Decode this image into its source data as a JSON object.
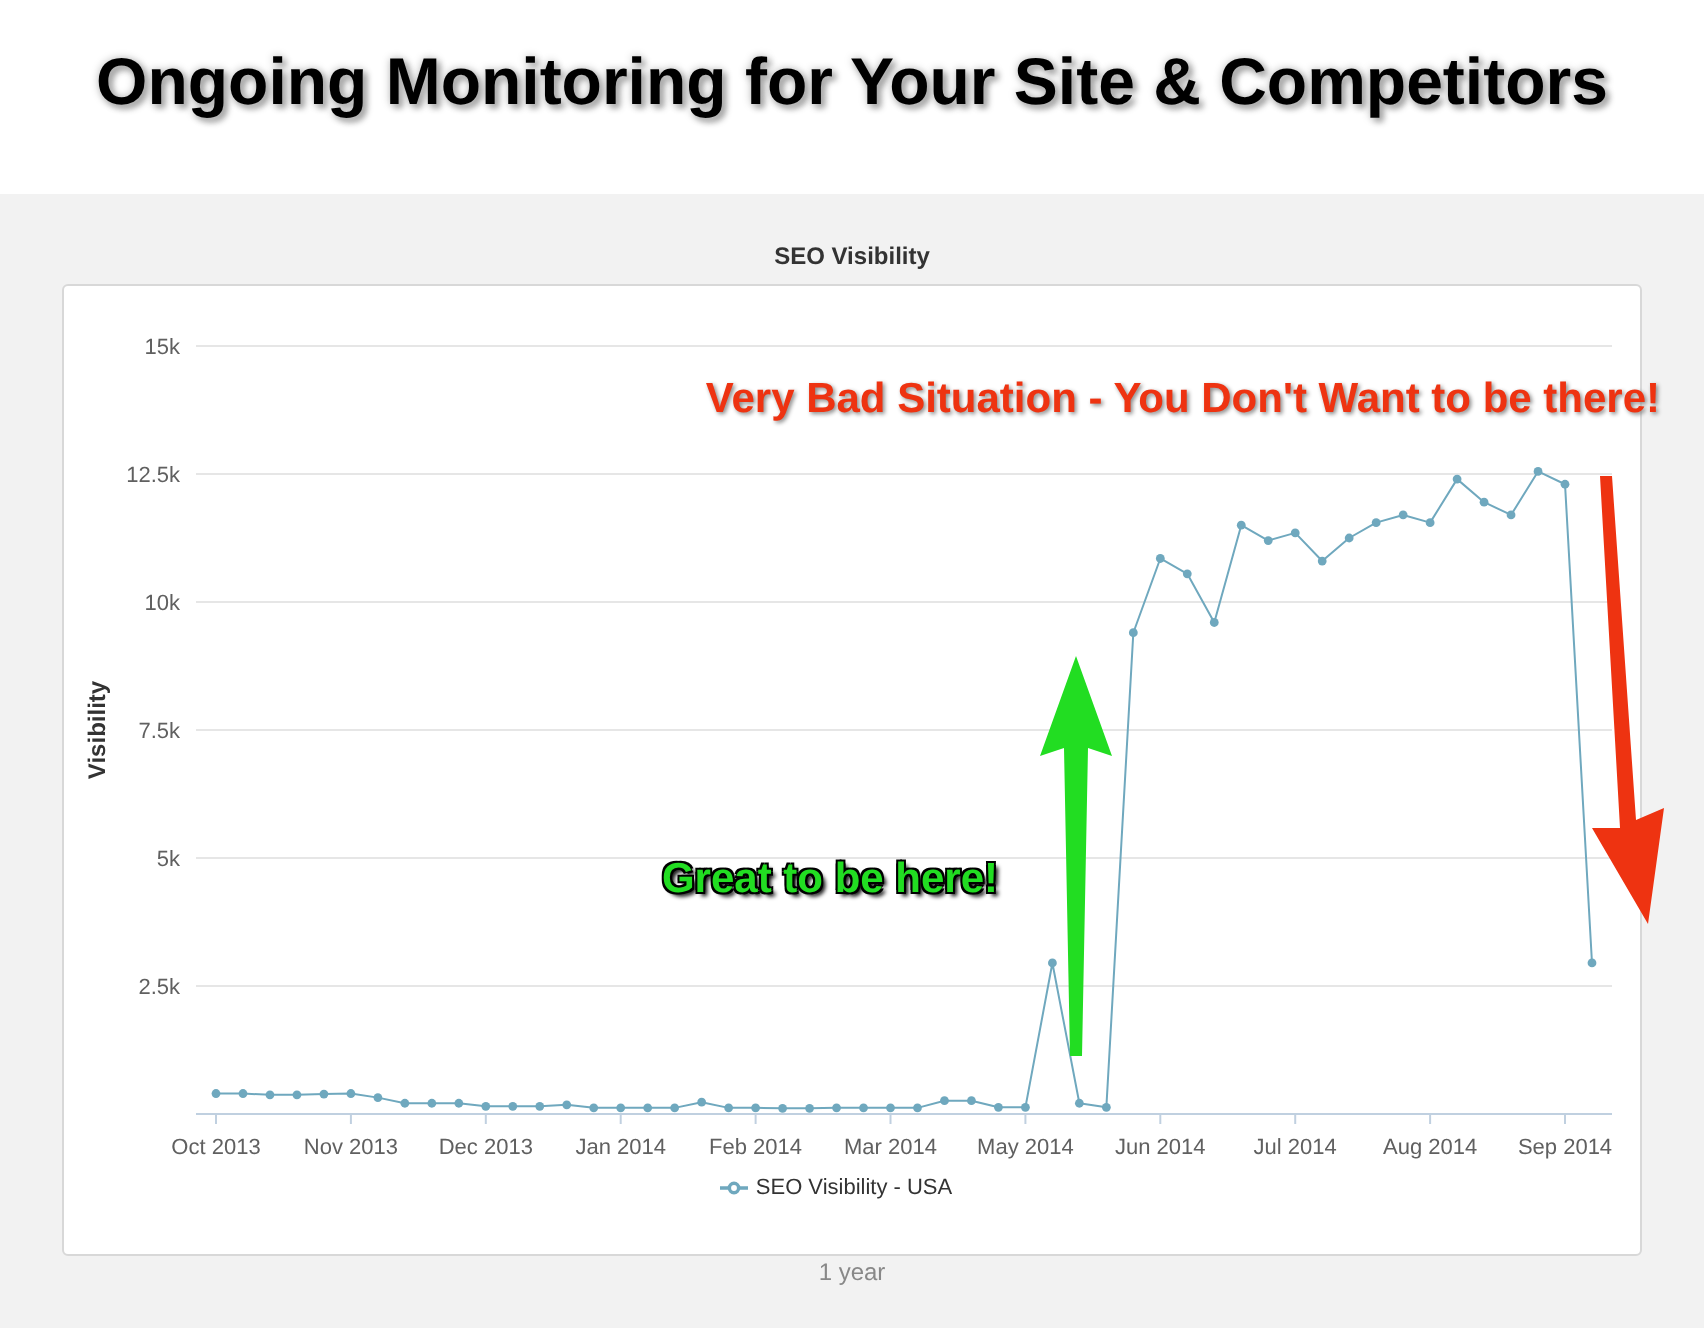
{
  "chart_data": {
    "type": "line",
    "title": "Ongoing Monitoring for Your Site & Competitors",
    "subtitle": "SEO Visibility",
    "ylabel": "Visibility",
    "categories": [
      "Oct 2013",
      null,
      null,
      null,
      null,
      "Nov 2013",
      null,
      null,
      null,
      null,
      "Dec 2013",
      null,
      null,
      null,
      null,
      "Jan 2014",
      null,
      null,
      null,
      null,
      "Feb 2014",
      null,
      null,
      null,
      null,
      "Mar 2014",
      null,
      null,
      null,
      null,
      "May 2014",
      null,
      null,
      null,
      null,
      "Jun 2014",
      null,
      null,
      null,
      null,
      "Jul 2014",
      null,
      null,
      null,
      null,
      "Aug 2014",
      null,
      null,
      null,
      null,
      "Sep 2014",
      null
    ],
    "series": [
      {
        "name": "SEO Visibility - USA",
        "color": "#6fa8be",
        "values": [
          400,
          400,
          375,
          375,
          390,
          400,
          320,
          210,
          210,
          210,
          150,
          150,
          150,
          180,
          120,
          120,
          120,
          120,
          230,
          120,
          120,
          110,
          110,
          120,
          120,
          120,
          120,
          260,
          260,
          130,
          130,
          2950,
          210,
          130,
          9400,
          10850,
          10550,
          9600,
          11500,
          11200,
          11350,
          10800,
          11250,
          11550,
          11700,
          11550,
          12400,
          11950,
          11700,
          12550,
          12300,
          2950
        ]
      }
    ],
    "ylim": [
      0,
      15000
    ],
    "yticks": [
      {
        "value": 2500,
        "label": "2.5k"
      },
      {
        "value": 5000,
        "label": "5k"
      },
      {
        "value": 7500,
        "label": "7.5k"
      },
      {
        "value": 10000,
        "label": "10k"
      },
      {
        "value": 12500,
        "label": "12.5k"
      },
      {
        "value": 15000,
        "label": "15k"
      }
    ],
    "grid": "y",
    "legend": "bottom",
    "marker": "circle",
    "line_style": "solid",
    "annotations": [
      "Very Bad Situation - You Don't Want to be there!",
      "Great to be here!",
      "1 year"
    ]
  }
}
